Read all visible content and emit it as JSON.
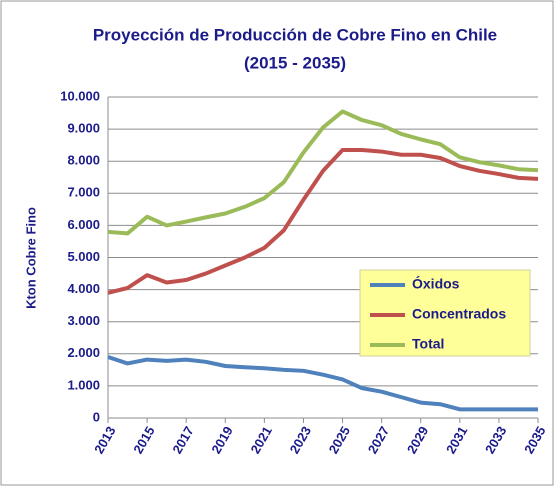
{
  "chart_data": {
    "type": "line",
    "title": "Proyección de Producción de Cobre Fino en Chile",
    "subtitle": "(2015 - 2035)",
    "ylabel": "Kton Cobre Fino",
    "x": [
      2013,
      2014,
      2015,
      2016,
      2017,
      2018,
      2019,
      2020,
      2021,
      2022,
      2023,
      2024,
      2025,
      2026,
      2027,
      2028,
      2029,
      2030,
      2031,
      2032,
      2033,
      2034,
      2035
    ],
    "xlim": [
      2013,
      2035
    ],
    "xticks": [
      2013,
      2015,
      2017,
      2019,
      2021,
      2023,
      2025,
      2027,
      2029,
      2031,
      2033,
      2035
    ],
    "ylim": [
      0,
      10000
    ],
    "yticks": [
      0,
      {
        "value": 1000,
        "label": "1.000"
      },
      {
        "value": 2000,
        "label": "2.000"
      },
      {
        "value": 3000,
        "label": "3.000"
      },
      {
        "value": 4000,
        "label": "4.000"
      },
      {
        "value": 5000,
        "label": "5.000"
      },
      {
        "value": 6000,
        "label": "6.000"
      },
      {
        "value": 7000,
        "label": "7.000"
      },
      {
        "value": 8000,
        "label": "8.000"
      },
      {
        "value": 9000,
        "label": "9.000"
      },
      {
        "value": 10000,
        "label": "10.000"
      }
    ],
    "grid": true,
    "legend": "right",
    "series": [
      {
        "name": "Óxidos",
        "color": "#4f81bd",
        "values": [
          1900,
          1700,
          1820,
          1780,
          1820,
          1750,
          1620,
          1580,
          1550,
          1500,
          1470,
          1350,
          1200,
          930,
          820,
          650,
          480,
          430,
          270,
          270,
          270,
          270,
          270
        ]
      },
      {
        "name": "Concentrados",
        "color": "#c0504d",
        "values": [
          3900,
          4050,
          4450,
          4220,
          4300,
          4500,
          4750,
          5000,
          5300,
          5850,
          6800,
          7700,
          8350,
          8350,
          8300,
          8200,
          8200,
          8100,
          7850,
          7700,
          7600,
          7480,
          7450
        ]
      },
      {
        "name": "Total",
        "color": "#9bbb59",
        "values": [
          5800,
          5750,
          6270,
          6000,
          6120,
          6250,
          6370,
          6580,
          6850,
          7350,
          8270,
          9050,
          9550,
          9280,
          9120,
          8850,
          8680,
          8530,
          8120,
          7970,
          7870,
          7750,
          7720
        ]
      }
    ]
  }
}
